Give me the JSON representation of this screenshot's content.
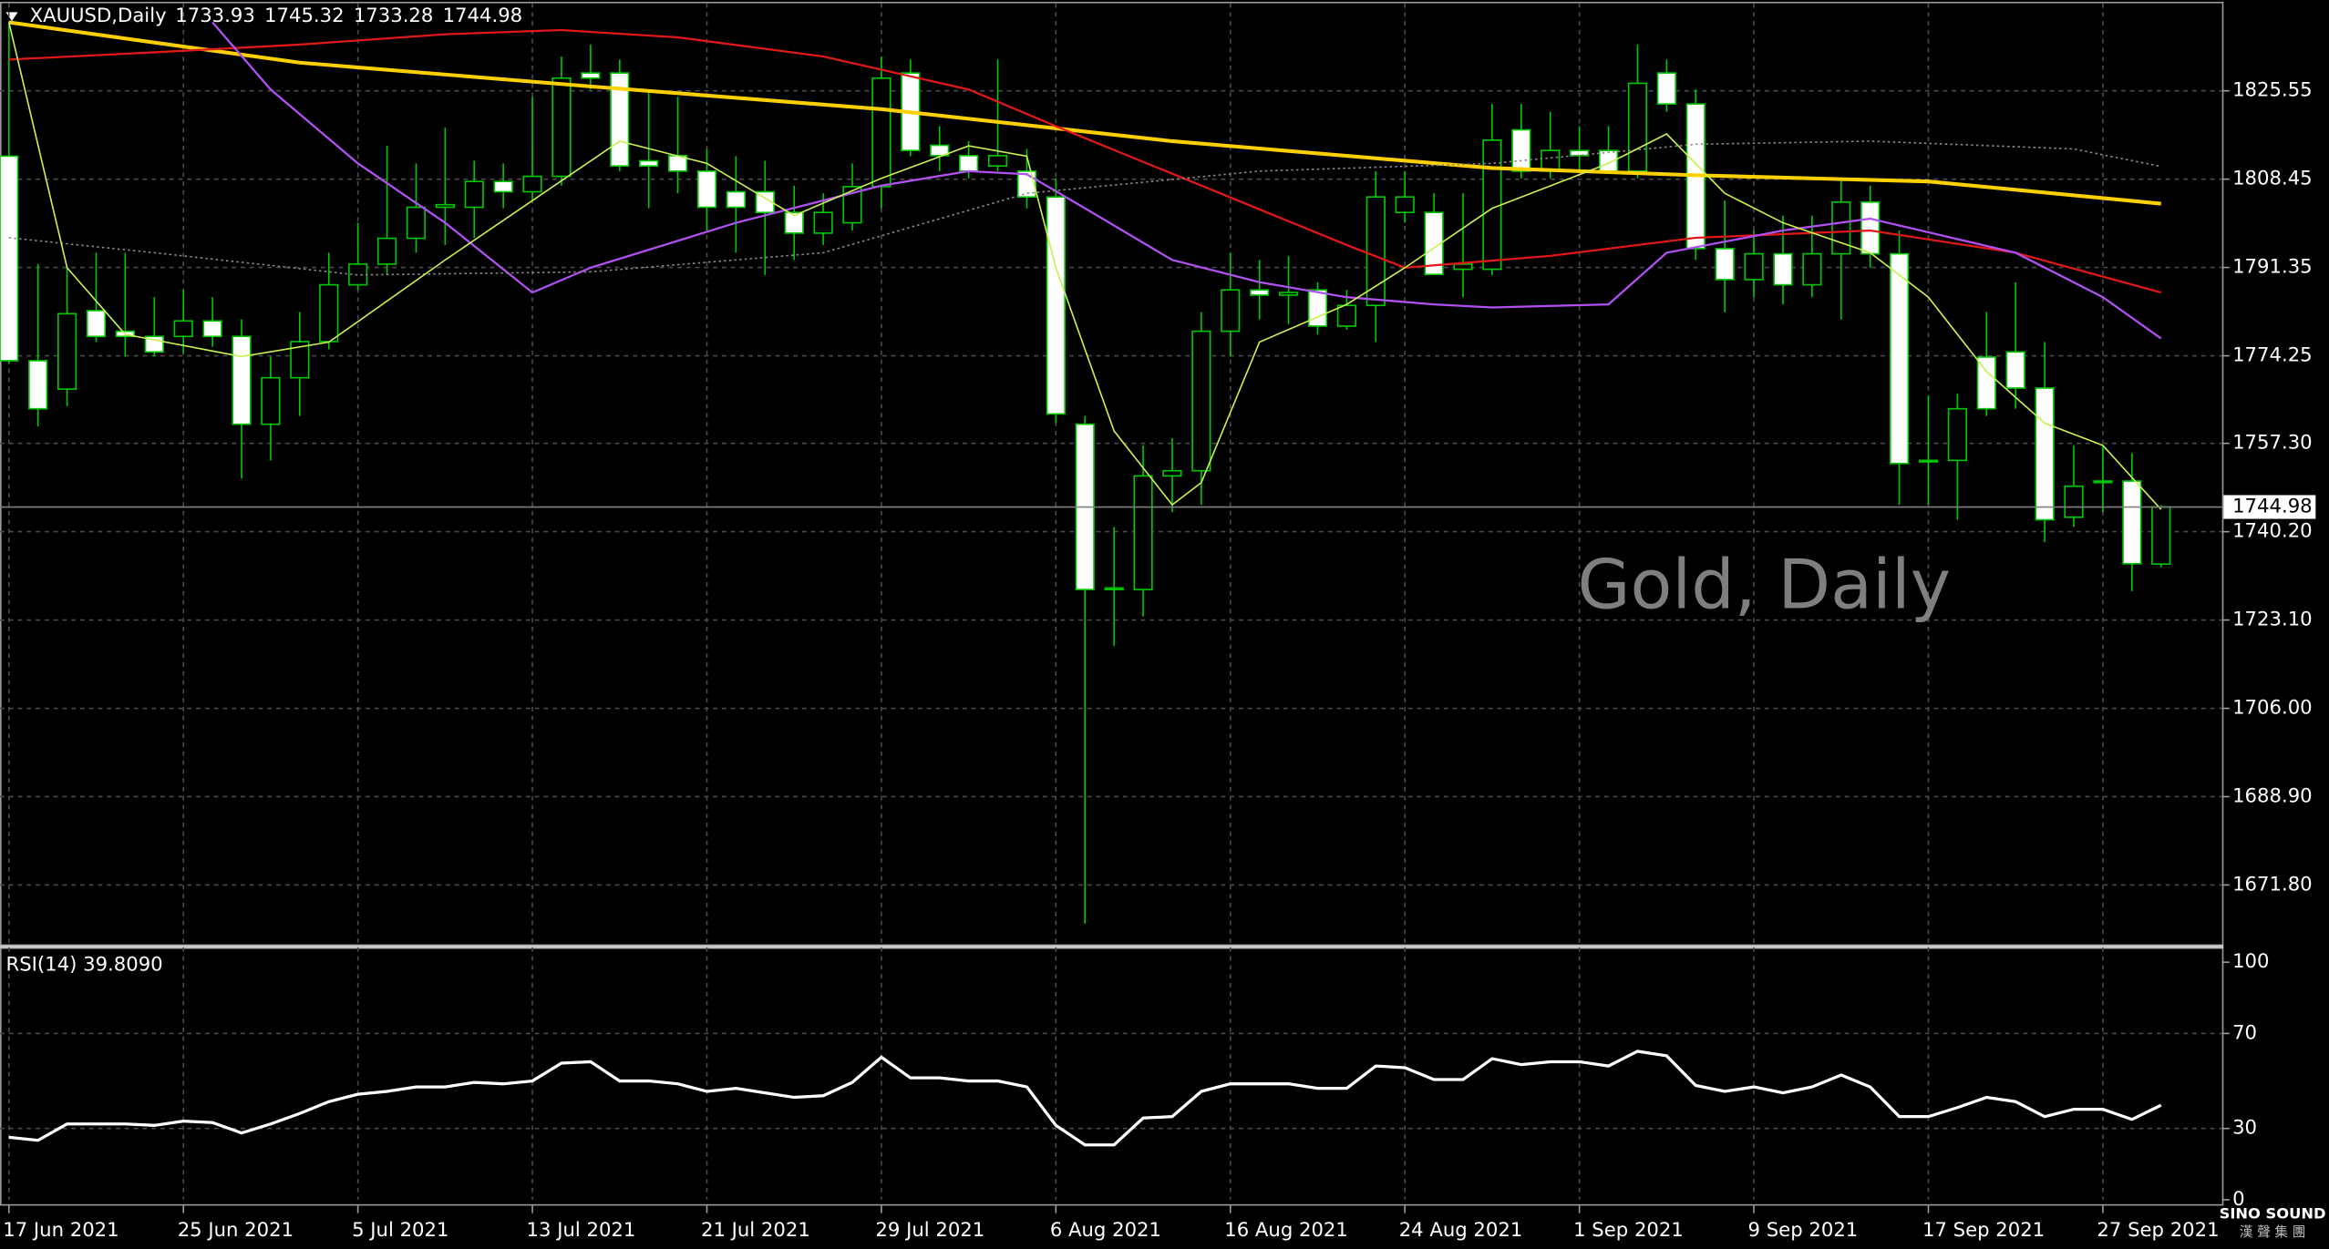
{
  "chart_data": [
    {
      "type": "candlestick",
      "title": "XAUUSD,Daily",
      "watermark": "Gold, Daily",
      "categories": [
        "17 Jun 2021",
        null,
        null,
        null,
        null,
        null,
        "25 Jun 2021",
        null,
        null,
        null,
        null,
        null,
        "5 Jul 2021",
        null,
        null,
        null,
        null,
        null,
        "13 Jul 2021",
        null,
        null,
        null,
        null,
        null,
        "21 Jul 2021",
        null,
        null,
        null,
        null,
        null,
        "29 Jul 2021",
        null,
        null,
        null,
        null,
        null,
        "6 Aug 2021",
        null,
        null,
        null,
        null,
        null,
        "16 Aug 2021",
        null,
        null,
        null,
        null,
        null,
        "24 Aug 2021",
        null,
        null,
        null,
        null,
        null,
        "1 Sep 2021",
        null,
        null,
        null,
        null,
        null,
        "9 Sep 2021",
        null,
        null,
        null,
        null,
        null,
        "17 Sep 2021",
        null,
        null,
        null,
        null,
        null,
        "27 Sep 2021",
        null,
        null
      ],
      "open": [
        1812.9,
        1773.3,
        1767.8,
        1783,
        1779,
        1778,
        1778,
        1781,
        1778,
        1761,
        1770,
        1777,
        1788,
        1792,
        1797,
        1803,
        1803,
        1808,
        1806,
        1809,
        1829,
        1829,
        1812,
        1813,
        1810,
        1806,
        1806,
        1802,
        1798,
        1800,
        1807,
        1829,
        1815,
        1813,
        1811,
        1810,
        1805,
        1761,
        1729,
        1729,
        1751,
        1752,
        1779,
        1787,
        1786,
        1787,
        1780,
        1784,
        1802,
        1802,
        1791,
        1791,
        1818,
        1810,
        1814,
        1814,
        1810,
        1829,
        1823,
        1795,
        1789,
        1794,
        1788,
        1794,
        1804,
        1794,
        1754,
        1754,
        1774,
        1775,
        1768,
        1743,
        1750,
        1750,
        1733.93
      ],
      "high": [
        1838.8,
        1792,
        1791.3,
        1794.2,
        1794.2,
        1785.6,
        1787,
        1785.6,
        1781.3,
        1774.1,
        1782.7,
        1794.2,
        1800,
        1814.9,
        1811.5,
        1818.4,
        1812,
        1811.5,
        1824.4,
        1832.2,
        1834.5,
        1831.6,
        1825.8,
        1824.4,
        1814.3,
        1812.9,
        1812,
        1807.2,
        1805.7,
        1811.5,
        1832.2,
        1831.6,
        1818.7,
        1815.8,
        1831.6,
        1814.3,
        1808.6,
        1762.6,
        1741.1,
        1756.9,
        1758.3,
        1782.7,
        1794.2,
        1792.8,
        1793.6,
        1788.5,
        1787,
        1810,
        1810,
        1805.7,
        1805.7,
        1823,
        1823,
        1821.5,
        1818.7,
        1818.7,
        1834.5,
        1831.6,
        1825.8,
        1804.3,
        1798.5,
        1801.4,
        1801.4,
        1808.6,
        1807.2,
        1798.5,
        1766.5,
        1766.9,
        1782.7,
        1788.5,
        1776.9,
        1756.9,
        1756.9,
        1755.4,
        1745.32
      ],
      "low": [
        1772.7,
        1760.6,
        1764.5,
        1776.9,
        1774.1,
        1774.1,
        1774.7,
        1776,
        1750.5,
        1754,
        1762.6,
        1775.5,
        1787,
        1789.9,
        1794.2,
        1795.7,
        1797.1,
        1802.8,
        1804.3,
        1807.2,
        1825.8,
        1810,
        1802.8,
        1805.7,
        1798.5,
        1794.2,
        1789.9,
        1792.8,
        1795.7,
        1798.5,
        1802.8,
        1812.9,
        1810,
        1808.6,
        1810,
        1802.8,
        1761.2,
        1664.3,
        1718.1,
        1723.8,
        1744,
        1745.4,
        1774.1,
        1781.3,
        1780.4,
        1778.4,
        1779.3,
        1776.9,
        1800,
        1789.9,
        1785.6,
        1789.9,
        1808.6,
        1808.6,
        1810,
        1809.5,
        1808.6,
        1821.5,
        1792.8,
        1782.7,
        1785.6,
        1784.2,
        1785.6,
        1781.3,
        1791.3,
        1745.4,
        1745.4,
        1742.5,
        1762.6,
        1764,
        1738.2,
        1741.1,
        1744,
        1728.7,
        1733.28
      ],
      "close": [
        1773.3,
        1764,
        1782.4,
        1778,
        1778,
        1775,
        1781,
        1778,
        1761,
        1770,
        1777,
        1788,
        1792,
        1797,
        1803,
        1803.5,
        1808,
        1806,
        1809,
        1828,
        1828,
        1811,
        1811,
        1810,
        1803,
        1803,
        1802,
        1798,
        1802,
        1807,
        1828,
        1814,
        1813,
        1810,
        1813,
        1805,
        1763,
        1729,
        1729.3,
        1751,
        1752,
        1779,
        1787,
        1786,
        1786.5,
        1780,
        1784,
        1805,
        1805,
        1790,
        1792,
        1816,
        1810,
        1814,
        1813,
        1810,
        1827,
        1823,
        1795,
        1789,
        1794,
        1788,
        1794,
        1804,
        1794,
        1753.4,
        1753.8,
        1764,
        1764,
        1768,
        1742.5,
        1749,
        1749.8,
        1734,
        1744.98
      ],
      "up_color": "#000000",
      "down_color": "#ffffff",
      "wick_color": "#00c800",
      "price_line_color": "#808080",
      "ylim": [
        1660.3,
        1842.5
      ],
      "yticks": [
        {
          "value": 1671.8,
          "label": "1671.80"
        },
        {
          "value": 1688.9,
          "label": "1688.90"
        },
        {
          "value": 1706.0,
          "label": "1706.00"
        },
        {
          "value": 1723.1,
          "label": "1723.10"
        },
        {
          "value": 1740.2,
          "label": "1740.20"
        },
        {
          "value": 1757.3,
          "label": "1757.30"
        },
        1774.25,
        1791.35,
        1808.45,
        1825.55
      ],
      "grid": true,
      "series": [
        {
          "color": "#ffd000",
          "style": "thick",
          "x": [
            0,
            10,
            20,
            30,
            40,
            51,
            58,
            66,
            74
          ],
          "values": [
            1838.8,
            1831,
            1826.4,
            1822,
            1815.8,
            1810.6,
            1809.2,
            1808,
            1803.7
          ]
        },
        {
          "color": "#e01818",
          "style": "normal",
          "x": [
            0,
            5,
            10,
            15,
            19,
            23,
            28,
            33,
            36,
            41,
            46,
            48,
            53,
            58,
            64,
            69,
            74
          ],
          "values": [
            1831.6,
            1833,
            1834.5,
            1836.5,
            1837.3,
            1835.9,
            1832.2,
            1825.8,
            1818.7,
            1807.2,
            1795.7,
            1791.3,
            1793.6,
            1797.1,
            1798.5,
            1794.2,
            1786.5
          ]
        },
        {
          "color": "#b050f0",
          "style": "normal",
          "x": [
            7,
            9,
            12,
            15,
            18,
            20,
            25,
            30,
            33,
            35,
            37,
            40,
            43,
            46,
            49,
            51,
            55,
            57,
            61,
            64,
            69,
            72,
            74
          ],
          "values": [
            1838.8,
            1825.8,
            1811.5,
            1800,
            1786.5,
            1791.3,
            1800,
            1807.2,
            1810,
            1809.4,
            1802.8,
            1792.8,
            1788.5,
            1785.6,
            1784.2,
            1783.6,
            1784.2,
            1794.2,
            1798.5,
            1800.8,
            1794.2,
            1785.6,
            1777.6
          ]
        },
        {
          "color": "#8a8a8a",
          "style": "dotted",
          "x": [
            0,
            5,
            12,
            20,
            28,
            35,
            43,
            51,
            58,
            64,
            71,
            74
          ],
          "values": [
            1797.1,
            1794.2,
            1789.9,
            1790.5,
            1794.2,
            1805.7,
            1810,
            1811.5,
            1815.2,
            1815.8,
            1814.3,
            1810.9
          ]
        },
        {
          "color": "#c8f050",
          "style": "thin",
          "x": [
            0,
            2,
            4,
            8,
            11,
            15,
            18,
            21,
            24,
            27,
            30,
            33,
            35,
            36,
            38,
            40,
            41,
            43,
            46,
            48,
            51,
            55,
            57,
            59,
            61,
            64,
            66,
            68,
            70,
            72,
            74
          ],
          "values": [
            1838.8,
            1791.3,
            1778.4,
            1774.1,
            1776.9,
            1792.8,
            1804.3,
            1815.8,
            1811.5,
            1801.4,
            1808.6,
            1814.9,
            1812.9,
            1791.3,
            1759.7,
            1745.4,
            1749.7,
            1776.9,
            1784.2,
            1791.3,
            1802.8,
            1811.5,
            1817.2,
            1805.7,
            1800,
            1794.2,
            1785.6,
            1771.2,
            1761.2,
            1756.9,
            1744.5
          ]
        }
      ]
    },
    {
      "type": "line",
      "title": "RSI(14) 39.8090",
      "color": "#ffffff",
      "values": [
        26.3,
        25,
        31.9,
        31.9,
        31.9,
        31.3,
        33.1,
        32.5,
        28.1,
        31.9,
        36.3,
        41.3,
        44.4,
        45.6,
        47.5,
        47.5,
        49.4,
        48.8,
        50,
        57.5,
        58.1,
        50,
        50,
        48.8,
        45.6,
        46.9,
        45,
        43.1,
        43.8,
        49.4,
        60,
        51.3,
        51.3,
        50,
        50,
        47.5,
        31.3,
        23.1,
        23.1,
        34.4,
        35,
        45.6,
        48.8,
        48.8,
        48.8,
        46.9,
        46.9,
        56.3,
        55.6,
        50.6,
        50.6,
        59.4,
        56.9,
        58.1,
        58.1,
        56.3,
        62.5,
        60.6,
        48.1,
        45.6,
        47.5,
        45,
        47.5,
        52.5,
        47.5,
        35,
        35,
        38.8,
        43.1,
        41.3,
        35,
        38.1,
        38.1,
        33.8,
        39.809
      ],
      "ylim": [
        0,
        100
      ],
      "yticks": [
        0,
        30,
        70,
        100
      ],
      "grid": true
    }
  ],
  "logo": {
    "name": "SINO SOUND",
    "subtitle": "漢 聲 集 團"
  }
}
